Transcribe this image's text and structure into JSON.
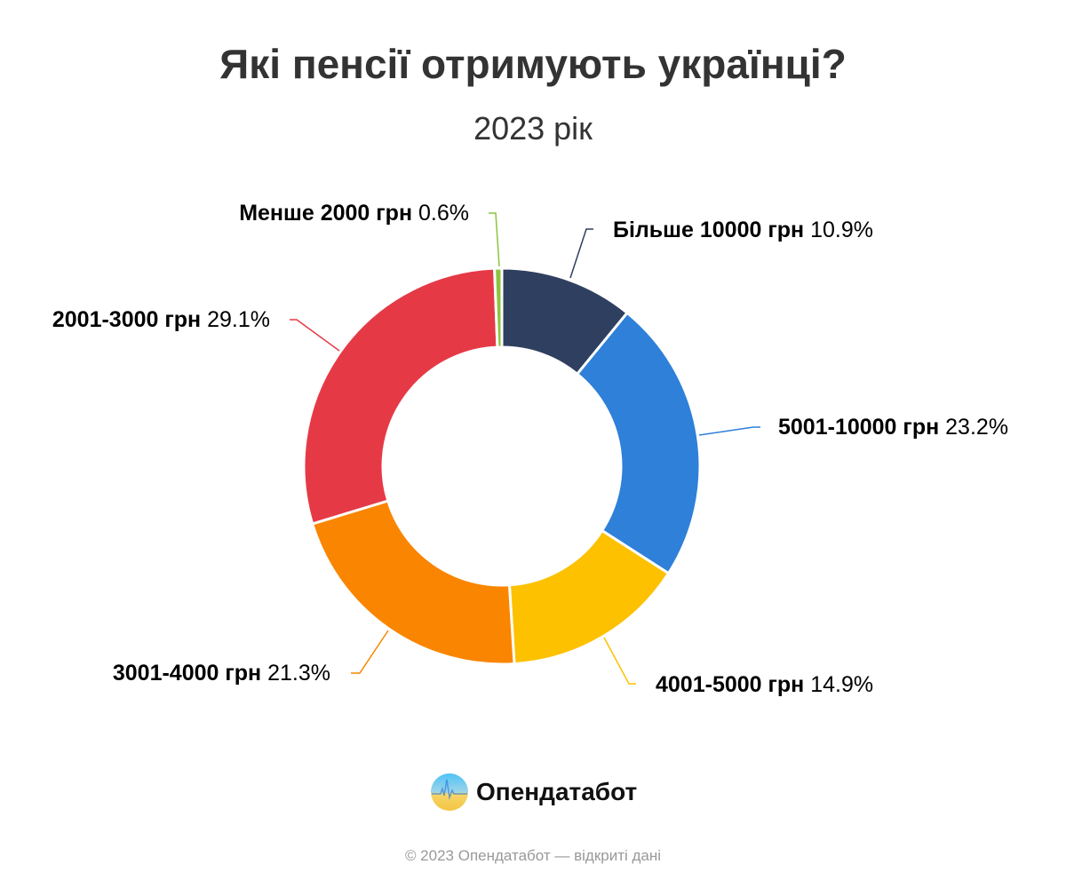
{
  "chart_data": {
    "type": "pie",
    "variant": "donut",
    "title": "Які пенсії отримують українці?",
    "subtitle": "2023 рік",
    "unit": "%",
    "slices": [
      {
        "label": "Більше 10000 грн",
        "value": 10.9,
        "value_text": "10.9%",
        "color": "#2f3f5f"
      },
      {
        "label": "5001-10000 грн",
        "value": 23.2,
        "value_text": "23.2%",
        "color": "#2e80d9"
      },
      {
        "label": "4001-5000 грн",
        "value": 14.9,
        "value_text": "14.9%",
        "color": "#fdc100"
      },
      {
        "label": "3001-4000 грн",
        "value": 21.3,
        "value_text": "21.3%",
        "color": "#fa8500"
      },
      {
        "label": "2001-3000 грн",
        "value": 29.1,
        "value_text": "29.1%",
        "color": "#e63946"
      },
      {
        "label": "Менше 2000 грн",
        "value": 0.6,
        "value_text": "0.6%",
        "color": "#8bc43f"
      }
    ],
    "legend": "none"
  },
  "brand": {
    "name": "Опендатабот"
  },
  "footer": {
    "text": "© 2023 Опендатабот — відкриті дані"
  }
}
